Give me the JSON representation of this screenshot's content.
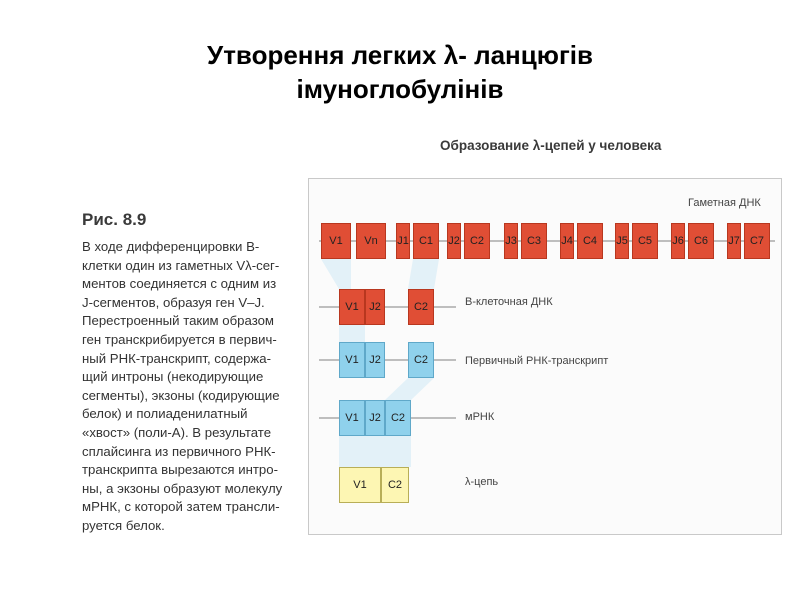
{
  "title": {
    "line1": "Утворення легких λ- ланцюгів",
    "line2": "імуноглобулінів"
  },
  "caption": {
    "figure": "Рис. 8.9",
    "lines": [
      "В ходе дифференцировки В-",
      "клетки один из гаметных Vλ-сег-",
      "ментов соединяется с одним из",
      "J-сегментов, образуя ген V–J.",
      "Перестроенный таким образом",
      "ген транскрибируется в первич-",
      "ный РНК-транскрипт, содержа-",
      "щий интроны (некодирующие",
      "сегменты), экзоны (кодирующие",
      "белок) и полиаденилатный",
      "«хвост» (поли-А). В результате",
      "сплайсинга из первичного РНК-",
      "транскрипта вырезаются интро-",
      "ны, а экзоны образуют молекулу",
      "мРНК, с которой затем трансли-",
      "руется белок."
    ]
  },
  "diagram": {
    "title": "Образование λ-цепей у человека",
    "colors": {
      "dna": "#e04e35",
      "rna": "#8fd1ec",
      "chain": "#fdf6b3",
      "line": "#9a9a9a",
      "link": "#cfe9f5"
    },
    "rows": [
      {
        "label": "Гаметная ДНК",
        "color": "red",
        "segments": [
          "V1",
          "Vn",
          "J1",
          "C1",
          "J2",
          "C2",
          "J3",
          "C3",
          "J4",
          "C4",
          "J5",
          "C5",
          "J6",
          "C6",
          "J7",
          "C7"
        ]
      },
      {
        "label": "В-клеточная ДНК",
        "color": "red",
        "segments": [
          "V1",
          "J2",
          "C2"
        ]
      },
      {
        "label": "Первичный РНК-транскрипт",
        "color": "blue",
        "segments": [
          "V1",
          "J2",
          "C2"
        ]
      },
      {
        "label": "мРНК",
        "color": "blue",
        "segments": [
          "V1",
          "J2",
          "C2"
        ]
      },
      {
        "label": "λ-цепь",
        "color": "yellow",
        "segments": [
          "V1",
          "C2"
        ]
      }
    ]
  }
}
